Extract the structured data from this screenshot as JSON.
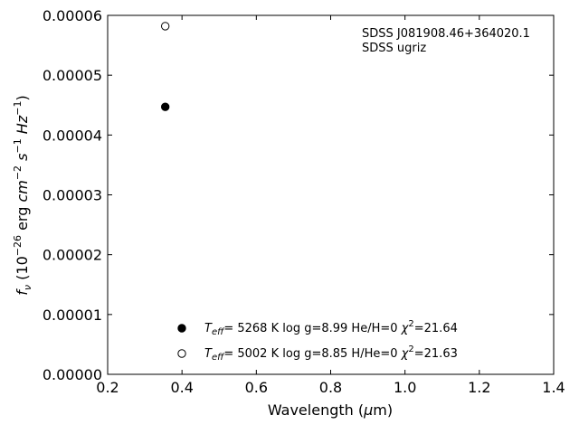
{
  "chart_data": {
    "type": "scatter",
    "xlabel": "Wavelength (μm)",
    "ylabel": "f_ν (10^-26 erg cm^-2 s^-1 Hz^-1)",
    "xlim": [
      0.2,
      1.4
    ],
    "ylim": [
      0.0,
      6e-05
    ],
    "x_ticks": [
      0.2,
      0.4,
      0.6,
      0.8,
      1.0,
      1.2,
      1.4
    ],
    "x_tick_labels": [
      "0.2",
      "0.4",
      "0.6",
      "0.8",
      "1.0",
      "1.2",
      "1.4"
    ],
    "y_ticks": [
      0,
      1e-05,
      2e-05,
      3e-05,
      4e-05,
      5e-05,
      6e-05
    ],
    "y_tick_labels": [
      "0.00000",
      "0.00001",
      "0.00002",
      "0.00003",
      "0.00004",
      "0.00005",
      "0.00006"
    ],
    "grid": false,
    "legend_position": "lower-center",
    "annotation": [
      "SDSS J081908.46+364020.1",
      "SDSS ugriz"
    ],
    "series": [
      {
        "name": "Teff= 5268 K log g=8.99 He/H=0 χ2=21.64",
        "marker": "filled-circle",
        "x": [
          0.355
        ],
        "y": [
          4.47e-05
        ]
      },
      {
        "name": "Teff= 5002 K log g=8.85 H/He=0 χ2=21.63",
        "marker": "open-circle",
        "x": [
          0.355
        ],
        "y": [
          5.82e-05
        ]
      }
    ],
    "legend": [
      {
        "teff_value": "5268",
        "params": "log g=8.99  He/H=0",
        "chi2_value": "21.64"
      },
      {
        "teff_value": "5002",
        "params": "log g=8.85  H/He=0",
        "chi2_value": "21.63"
      }
    ]
  }
}
